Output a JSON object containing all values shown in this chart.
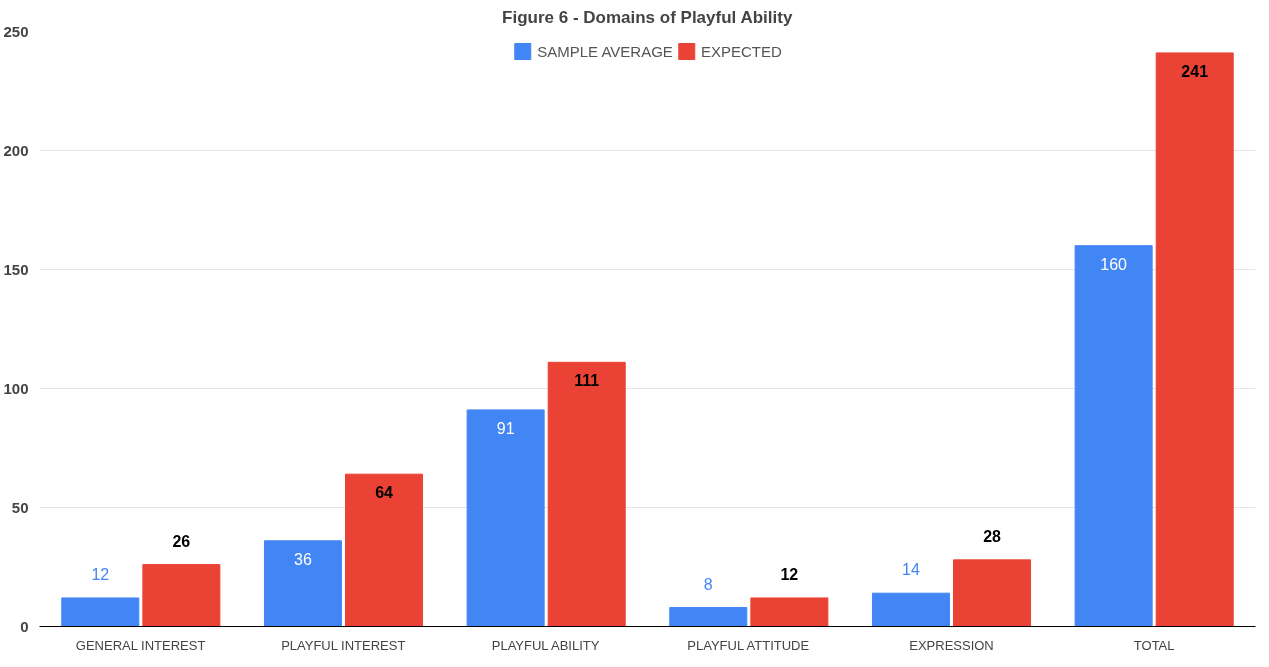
{
  "chart_data": {
    "type": "bar",
    "title": "Figure 6 - Domains of Playful Ability",
    "categories": [
      "GENERAL INTEREST",
      "PLAYFUL INTEREST",
      "PLAYFUL ABILITY",
      "PLAYFUL ATTITUDE",
      "EXPRESSION",
      "TOTAL"
    ],
    "series": [
      {
        "name": "SAMPLE AVERAGE",
        "color": "#4285f4",
        "values": [
          12,
          36,
          91,
          8,
          14,
          160
        ]
      },
      {
        "name": "EXPECTED",
        "color": "#ea4335",
        "values": [
          26,
          64,
          111,
          12,
          28,
          241
        ]
      }
    ],
    "ylim": [
      0,
      250
    ],
    "yticks": [
      0,
      50,
      100,
      150,
      200,
      250
    ],
    "grid": "y",
    "legend": "top",
    "data_labels": true
  }
}
